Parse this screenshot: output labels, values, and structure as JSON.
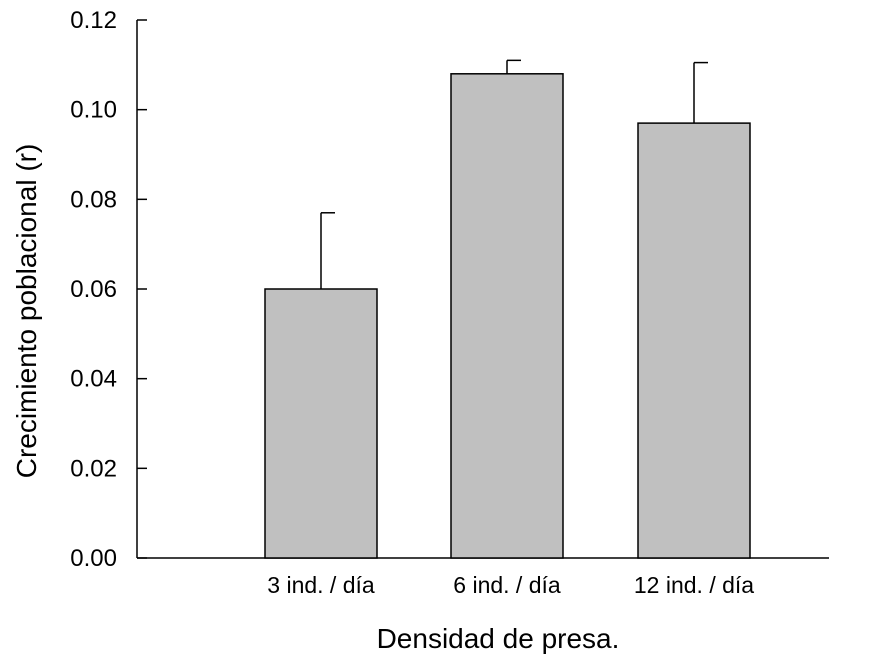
{
  "chart_data": {
    "type": "bar",
    "title": "",
    "xlabel": "Densidad de presa.",
    "ylabel": "Crecimiento poblacional (r)",
    "categories": [
      "3 ind. / día",
      "6 ind. / día",
      "12 ind. / día"
    ],
    "values": [
      0.06,
      0.108,
      0.097
    ],
    "error_upper": [
      0.017,
      0.003,
      0.0135
    ],
    "ylim": [
      0,
      0.12
    ],
    "yticks": [
      "0.00",
      "0.02",
      "0.04",
      "0.06",
      "0.08",
      "0.10",
      "0.12"
    ],
    "grid": false,
    "legend": "none",
    "bar_color": "#c0c0c0",
    "edge_color": "#000000"
  }
}
